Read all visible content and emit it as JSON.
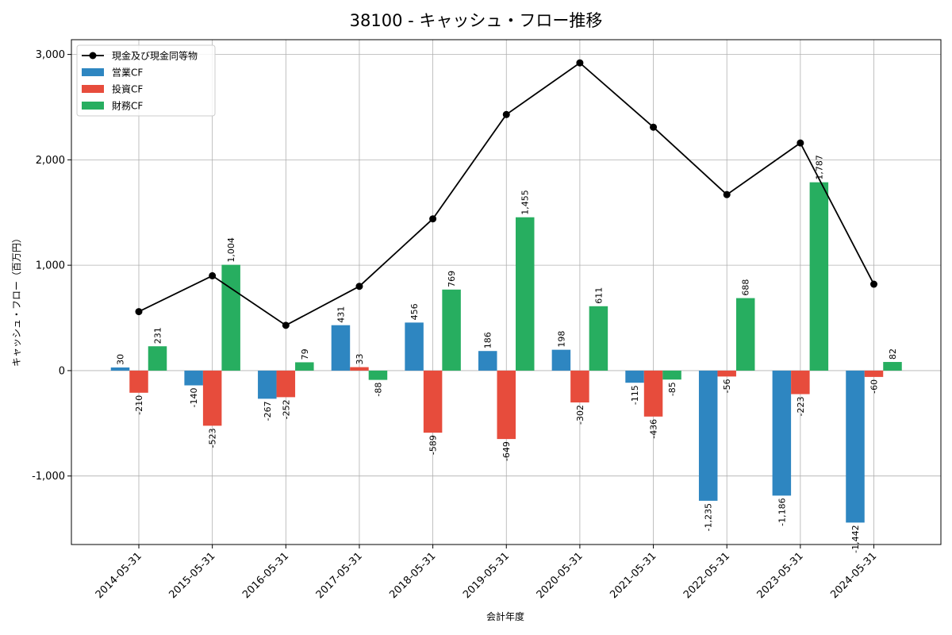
{
  "chart_data": {
    "type": "bar",
    "title": "38100 - キャッシュ・フロー推移",
    "xlabel": "会計年度",
    "ylabel": "キャッシュ・フロー（百万円）",
    "categories": [
      "2014-05-31",
      "2015-05-31",
      "2016-05-31",
      "2017-05-31",
      "2018-05-31",
      "2019-05-31",
      "2020-05-31",
      "2021-05-31",
      "2022-05-31",
      "2023-05-31",
      "2024-05-31"
    ],
    "ylim": [
      -1650,
      3140
    ],
    "yticks": [
      -1000,
      0,
      1000,
      2000,
      3000
    ],
    "ytick_labels": [
      "-1,000",
      "0",
      "1,000",
      "2,000",
      "3,000"
    ],
    "grid": true,
    "legend_position": "top-left",
    "bar_series": [
      {
        "name": "営業CF",
        "color": "#2e86c1",
        "values": [
          30,
          -140,
          -267,
          431,
          456,
          186,
          198,
          -115,
          -1235,
          -1186,
          -1442
        ],
        "labels": [
          "30",
          "-140",
          "-267",
          "431",
          "456",
          "186",
          "198",
          "-115",
          "-1,235",
          "-1,186",
          "-1,442"
        ]
      },
      {
        "name": "投資CF",
        "color": "#e74c3c",
        "values": [
          -210,
          -523,
          -252,
          33,
          -589,
          -649,
          -302,
          -436,
          -56,
          -223,
          -60
        ],
        "labels": [
          "-210",
          "-523",
          "-252",
          "33",
          "-589",
          "-649",
          "-302",
          "-436",
          "-56",
          "-223",
          "-60"
        ]
      },
      {
        "name": "財務CF",
        "color": "#27ae60",
        "values": [
          231,
          1004,
          79,
          -88,
          769,
          1455,
          611,
          -85,
          688,
          1787,
          82
        ],
        "labels": [
          "231",
          "1,004",
          "79",
          "-88",
          "769",
          "1,455",
          "611",
          "-85",
          "688",
          "1,787",
          "82"
        ]
      }
    ],
    "line_series": {
      "name": "現金及び現金同等物",
      "color": "#000000",
      "values": [
        560,
        900,
        430,
        800,
        1440,
        2430,
        2920,
        2310,
        1670,
        2160,
        820
      ]
    }
  }
}
